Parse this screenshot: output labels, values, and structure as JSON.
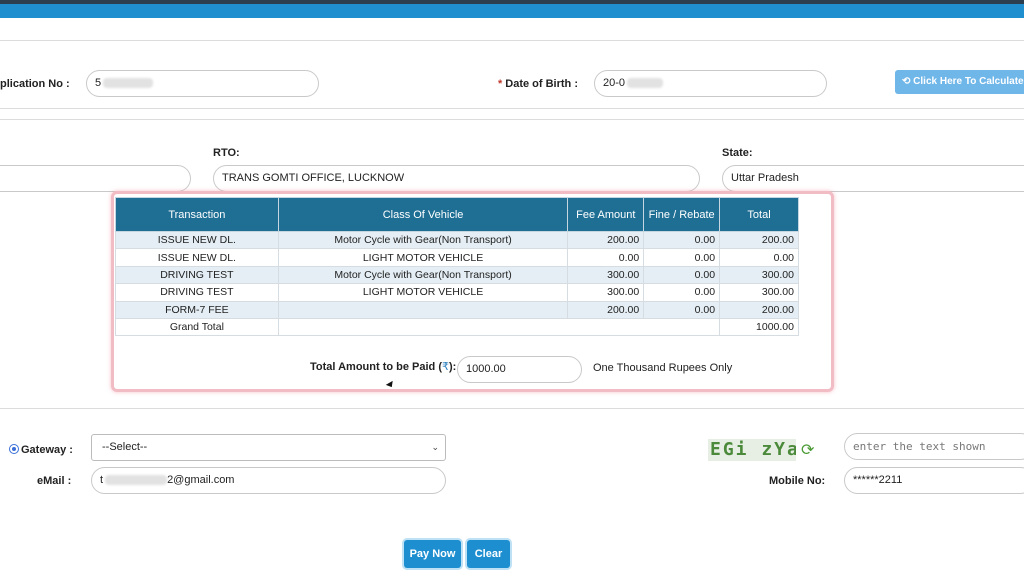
{
  "header": {
    "application_no_label": "plication No :",
    "application_no_value": "5",
    "dob_label": "Date of Birth :",
    "dob_required": "*",
    "dob_value": "20-0",
    "calculate_button": "Click Here To Calculate Fe"
  },
  "location": {
    "rto_label": "RTO:",
    "rto_value": "TRANS GOMTI OFFICE, LUCKNOW",
    "state_label": "State:",
    "state_value": "Uttar Pradesh"
  },
  "fees": {
    "columns": [
      "Transaction",
      "Class Of Vehicle",
      "Fee Amount",
      "Fine / Rebate",
      "Total"
    ],
    "rows": [
      {
        "transaction": "ISSUE NEW DL.",
        "class": "Motor Cycle with Gear(Non Transport)",
        "fee": "200.00",
        "fine": "0.00",
        "total": "200.00"
      },
      {
        "transaction": "ISSUE NEW DL.",
        "class": "LIGHT MOTOR VEHICLE",
        "fee": "0.00",
        "fine": "0.00",
        "total": "0.00"
      },
      {
        "transaction": "DRIVING TEST",
        "class": "Motor Cycle with Gear(Non Transport)",
        "fee": "300.00",
        "fine": "0.00",
        "total": "300.00"
      },
      {
        "transaction": "DRIVING TEST",
        "class": "LIGHT MOTOR VEHICLE",
        "fee": "300.00",
        "fine": "0.00",
        "total": "300.00"
      },
      {
        "transaction": "FORM-7 FEE",
        "class": "",
        "fee": "200.00",
        "fine": "0.00",
        "total": "200.00"
      }
    ],
    "grand_total_label": "Grand Total",
    "grand_total_value": "1000.00",
    "total_paid_label": "Total Amount to be Paid (",
    "rupee_symbol": "₹",
    "total_paid_label_end": "):",
    "total_paid_value": "1000.00",
    "amount_in_words": "One Thousand Rupees Only"
  },
  "payment": {
    "gateway_label": "Gateway :",
    "gateway_selected": "--Select--",
    "email_label": "eMail :",
    "email_prefix": "t",
    "email_suffix": "2@gmail.com",
    "captcha_text": "EGi zYa",
    "captcha_placeholder": "enter the text shown",
    "mobile_label": "Mobile No:",
    "mobile_value": "******2211",
    "pay_button": "Pay Now",
    "clear_button": "Clear"
  },
  "colors": {
    "accent": "#1d8fd1",
    "table_header": "#1f6f95",
    "highlight_border": "#f2bcc4"
  }
}
